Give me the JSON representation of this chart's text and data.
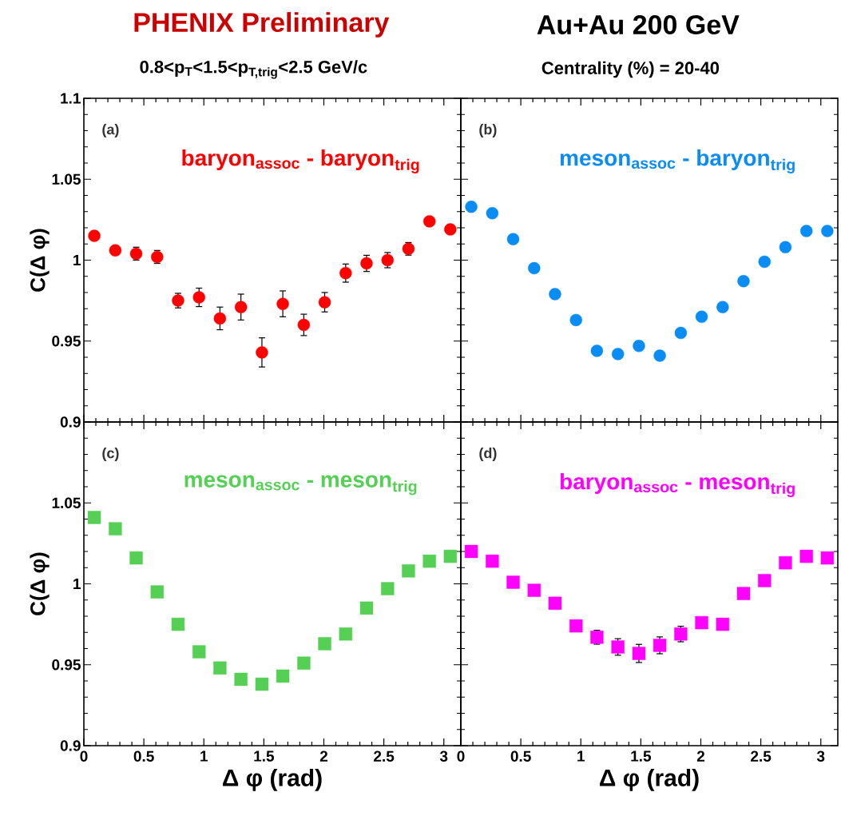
{
  "chart_data": [
    {
      "type": "scatter",
      "title": "PHENIX Preliminary",
      "subtitle": "0.8<p$_{T}$<1.5<p$_{T,trig}$<2.5 GeV/c",
      "ylabel": "C(Δ φ)",
      "annotations": [
        "(a)"
      ],
      "marker": "circle",
      "tick_labels": "y",
      "x": [
        0.087,
        0.262,
        0.436,
        0.611,
        0.785,
        0.96,
        1.134,
        1.309,
        1.484,
        1.658,
        1.833,
        2.007,
        2.182,
        2.356,
        2.531,
        2.705,
        2.88,
        3.054
      ],
      "xlim": [
        0,
        3.1416
      ],
      "xticks": [
        0,
        0.5,
        1,
        1.5,
        2,
        2.5,
        3
      ],
      "ylim": [
        0.9,
        1.1
      ],
      "yticks": [
        0.9,
        0.95,
        1,
        1.05,
        1.1
      ],
      "series": [
        {
          "name": "baryon$_{assoc}$ - baryon$_{trig}$",
          "color": "#ff0000",
          "values": [
            1.015,
            1.006,
            1.004,
            1.002,
            0.975,
            0.977,
            0.964,
            0.971,
            0.943,
            0.973,
            0.96,
            0.974,
            0.992,
            0.998,
            1.0,
            1.007,
            1.024,
            1.019
          ],
          "errors": [
            null,
            null,
            0.004,
            0.004,
            0.0045,
            0.0057,
            0.007,
            0.008,
            0.009,
            0.008,
            0.0066,
            0.006,
            0.0056,
            0.005,
            0.0047,
            0.0039,
            null,
            null
          ]
        }
      ]
    },
    {
      "type": "scatter",
      "title": "Au+Au 200 GeV",
      "subtitle": "Centrality (%) = 20-40",
      "annotations": [
        "(b)"
      ],
      "marker": "circle",
      "tick_labels": false,
      "x": [
        0.087,
        0.262,
        0.436,
        0.611,
        0.785,
        0.96,
        1.134,
        1.309,
        1.484,
        1.658,
        1.833,
        2.007,
        2.182,
        2.356,
        2.531,
        2.705,
        2.88,
        3.054
      ],
      "xlim": [
        0,
        3.1416
      ],
      "xticks": [
        0,
        0.5,
        1,
        1.5,
        2,
        2.5,
        3
      ],
      "ylim": [
        0.9,
        1.1
      ],
      "yticks": [
        0.9,
        0.95,
        1,
        1.05,
        1.1
      ],
      "series": [
        {
          "name": "meson$_{assoc}$ - baryon$_{trig}$",
          "color": "#0a8cf5",
          "values": [
            1.033,
            1.029,
            1.013,
            0.995,
            0.979,
            0.963,
            0.944,
            0.942,
            0.947,
            0.941,
            0.955,
            0.965,
            0.971,
            0.987,
            0.999,
            1.008,
            1.018,
            1.018
          ]
        }
      ]
    },
    {
      "type": "scatter",
      "xlabel": "Δ φ (rad)",
      "ylabel": "C(Δ φ)",
      "annotations": [
        "(c)"
      ],
      "marker": "square",
      "x": [
        0.087,
        0.262,
        0.436,
        0.611,
        0.785,
        0.96,
        1.134,
        1.309,
        1.484,
        1.658,
        1.833,
        2.007,
        2.182,
        2.356,
        2.531,
        2.705,
        2.88,
        3.054
      ],
      "xlim": [
        0,
        3.1416
      ],
      "xticks": [
        0,
        0.5,
        1,
        1.5,
        2,
        2.5,
        3
      ],
      "ylim": [
        0.9,
        1.1
      ],
      "yticks": [
        0.9,
        0.95,
        1,
        1.05,
        {
          "value": 1.1,
          "label": null
        }
      ],
      "series": [
        {
          "name": "meson$_{assoc}$ - meson$_{trig}$",
          "color": "#55d055",
          "values": [
            1.041,
            1.034,
            1.016,
            0.995,
            0.975,
            0.958,
            0.948,
            0.941,
            0.938,
            0.943,
            0.951,
            0.963,
            0.969,
            0.985,
            0.997,
            1.008,
            1.014,
            1.017
          ]
        }
      ]
    },
    {
      "type": "scatter",
      "xlabel": "Δ φ (rad)",
      "annotations": [
        "(d)"
      ],
      "marker": "square",
      "tick_labels": "x",
      "x": [
        0.087,
        0.262,
        0.436,
        0.611,
        0.785,
        0.96,
        1.134,
        1.309,
        1.484,
        1.658,
        1.833,
        2.007,
        2.182,
        2.356,
        2.531,
        2.705,
        2.88,
        3.054
      ],
      "xlim": [
        0,
        3.1416
      ],
      "xticks": [
        0,
        0.5,
        1,
        1.5,
        2,
        2.5,
        3
      ],
      "ylim": [
        0.9,
        1.1
      ],
      "yticks": [
        0.9,
        0.95,
        1,
        1.05,
        {
          "value": 1.1,
          "label": null
        }
      ],
      "series": [
        {
          "name": "baryon$_{assoc}$ - meson$_{trig}$",
          "color": "#ff00ff",
          "values": [
            1.02,
            1.014,
            1.001,
            0.996,
            0.988,
            0.974,
            0.967,
            0.961,
            0.957,
            0.962,
            0.969,
            0.976,
            0.975,
            0.994,
            1.002,
            1.013,
            1.017,
            1.016
          ],
          "errors": [
            null,
            null,
            null,
            null,
            null,
            null,
            0.0043,
            0.0051,
            0.0056,
            0.0052,
            0.0048,
            null,
            null,
            null,
            null,
            null,
            null,
            null
          ]
        }
      ]
    }
  ]
}
